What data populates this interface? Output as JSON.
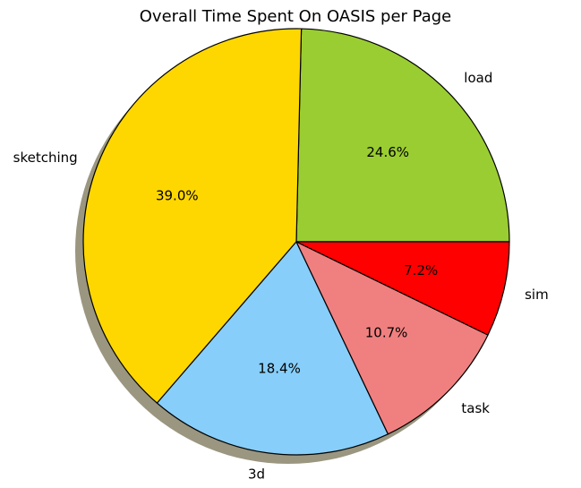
{
  "chart_data": {
    "type": "pie",
    "title": "Overall Time Spent On OASIS per Page",
    "shadow": true,
    "start_angle_deg": 0,
    "direction": "counterclockwise",
    "slices": [
      {
        "label": "load",
        "value": 24.6,
        "pct_label": "24.6%",
        "color": "#9ACD32"
      },
      {
        "label": "sketching",
        "value": 39.0,
        "pct_label": "39.0%",
        "color": "#FFD700"
      },
      {
        "label": "3d",
        "value": 18.4,
        "pct_label": "18.4%",
        "color": "#87CEFA"
      },
      {
        "label": "task",
        "value": 10.7,
        "pct_label": "10.7%",
        "color": "#F08080"
      },
      {
        "label": "sim",
        "value": 7.2,
        "pct_label": "7.2%",
        "color": "#FF0000"
      }
    ]
  }
}
